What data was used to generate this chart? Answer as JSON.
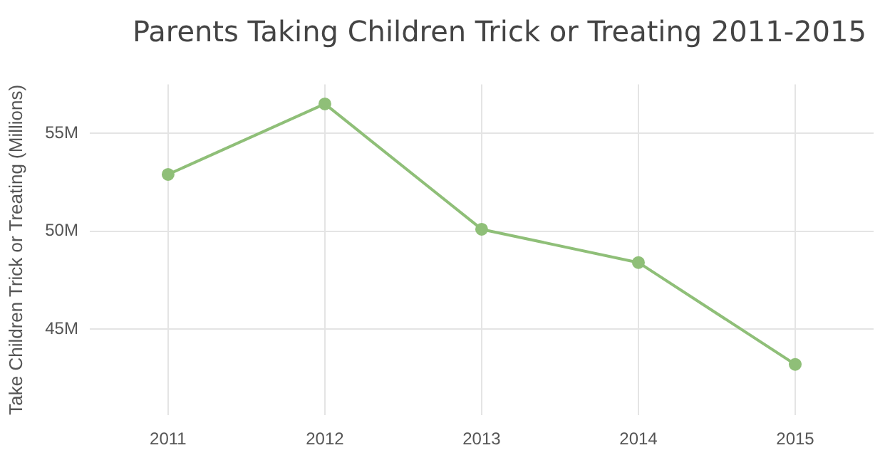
{
  "chart_data": {
    "type": "line",
    "title": "Parents Taking Children Trick or Treating 2011-2015",
    "ylabel": "Take Children Trick or Treating (Millions)",
    "categories": [
      "2011",
      "2012",
      "2013",
      "2014",
      "2015"
    ],
    "series": [
      {
        "color": "#8fbf78",
        "values": [
          52.9,
          56.5,
          50.1,
          48.4,
          43.2
        ]
      }
    ],
    "ylim": [
      40.6,
      57.5
    ],
    "yticks": [
      {
        "value": 45,
        "label": "45M"
      },
      {
        "value": 50,
        "label": "50M"
      },
      {
        "value": 55,
        "label": "55M"
      }
    ],
    "grid": true,
    "legend": false,
    "marker": "circle",
    "line_style": "solid"
  }
}
